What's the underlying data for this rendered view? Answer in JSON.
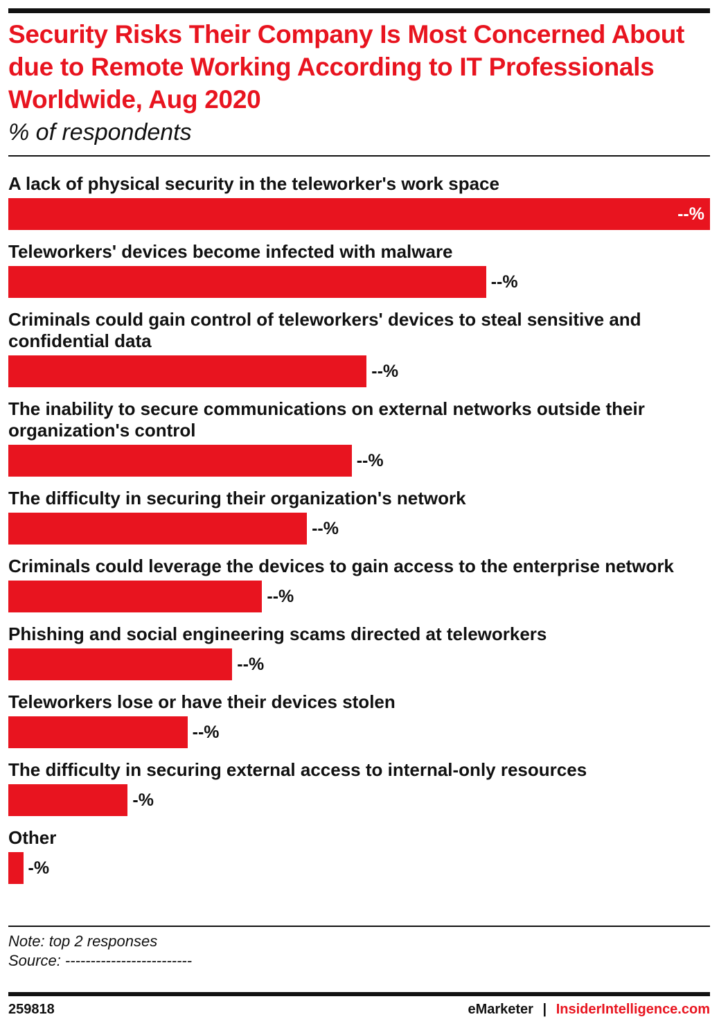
{
  "chart_data": {
    "type": "bar",
    "orientation": "horizontal",
    "title": "Security Risks Their Company Is Most Concerned About due to Remote Working According to IT Professionals Worldwide, Aug 2020",
    "subtitle": "% of respondents",
    "categories": [
      "A lack of physical security in the teleworker's work space",
      "Teleworkers' devices become infected with malware",
      "Criminals could gain control of teleworkers' devices to steal sensitive and confidential data",
      "The inability to secure communications on external networks outside their organization's control",
      "The difficulty in securing their organization's network",
      "Criminals could leverage the devices to gain access to the enterprise network",
      "Phishing and social engineering scams directed at teleworkers",
      "Teleworkers lose or have their devices stolen",
      "The difficulty in securing external access to internal-only resources",
      "Other"
    ],
    "values": [
      47,
      32,
      24,
      23,
      20,
      17,
      15,
      12,
      8,
      1
    ],
    "value_labels": [
      "--%",
      "--%",
      "--%",
      "--%",
      "--%",
      "--%",
      "--%",
      "--%",
      "-%",
      "-%"
    ],
    "color": "#e8141f",
    "note": "Note: top 2 responses",
    "source": "Source: -------------------------",
    "chart_id": "259818",
    "brand": "eMarketer",
    "separator": "|",
    "brand_site": "InsiderIntelligence.com"
  }
}
